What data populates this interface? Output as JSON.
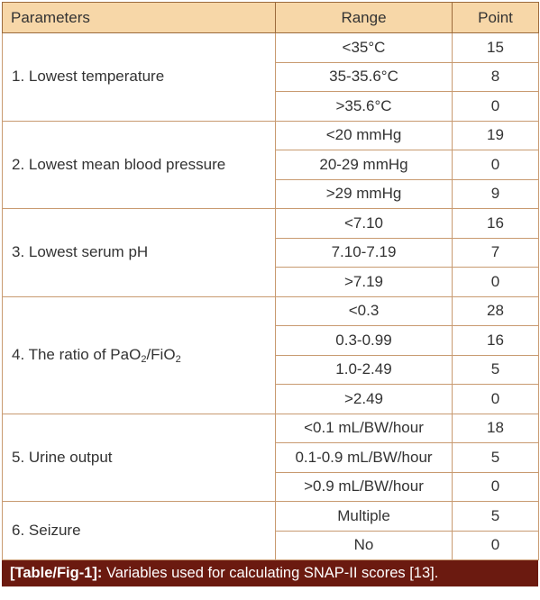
{
  "table": {
    "headers": {
      "parameters": "Parameters",
      "range": "Range",
      "point": "Point"
    },
    "groups": [
      {
        "label": "1. Lowest temperature",
        "rows": [
          {
            "range": "<35°C",
            "point": "15"
          },
          {
            "range": "35-35.6°C",
            "point": "8"
          },
          {
            "range": ">35.6°C",
            "point": "0"
          }
        ]
      },
      {
        "label": "2. Lowest mean blood pressure",
        "rows": [
          {
            "range": "<20 mmHg",
            "point": "19"
          },
          {
            "range": "20-29 mmHg",
            "point": "0"
          },
          {
            "range": ">29 mmHg",
            "point": "9"
          }
        ]
      },
      {
        "label": "3. Lowest serum pH",
        "rows": [
          {
            "range": "<7.10",
            "point": "16"
          },
          {
            "range": "7.10-7.19",
            "point": "7"
          },
          {
            "range": ">7.19",
            "point": "0"
          }
        ]
      },
      {
        "label_parts": [
          "4. The ratio of PaO",
          "2",
          "/FiO",
          "2"
        ],
        "rows": [
          {
            "range": "<0.3",
            "point": "28"
          },
          {
            "range": "0.3-0.99",
            "point": "16"
          },
          {
            "range": "1.0-2.49",
            "point": "5"
          },
          {
            "range": ">2.49",
            "point": "0"
          }
        ]
      },
      {
        "label": "5. Urine output",
        "rows": [
          {
            "range": "<0.1 mL/BW/hour",
            "point": "18"
          },
          {
            "range": "0.1-0.9 mL/BW/hour",
            "point": "5"
          },
          {
            "range": ">0.9 mL/BW/hour",
            "point": "0"
          }
        ]
      },
      {
        "label": "6. Seizure",
        "rows": [
          {
            "range": "Multiple",
            "point": "5"
          },
          {
            "range": "No",
            "point": "0"
          }
        ]
      }
    ]
  },
  "caption": {
    "label": "[Table/Fig-1]:",
    "text": " Variables used for calculating SNAP-II scores [13]."
  }
}
